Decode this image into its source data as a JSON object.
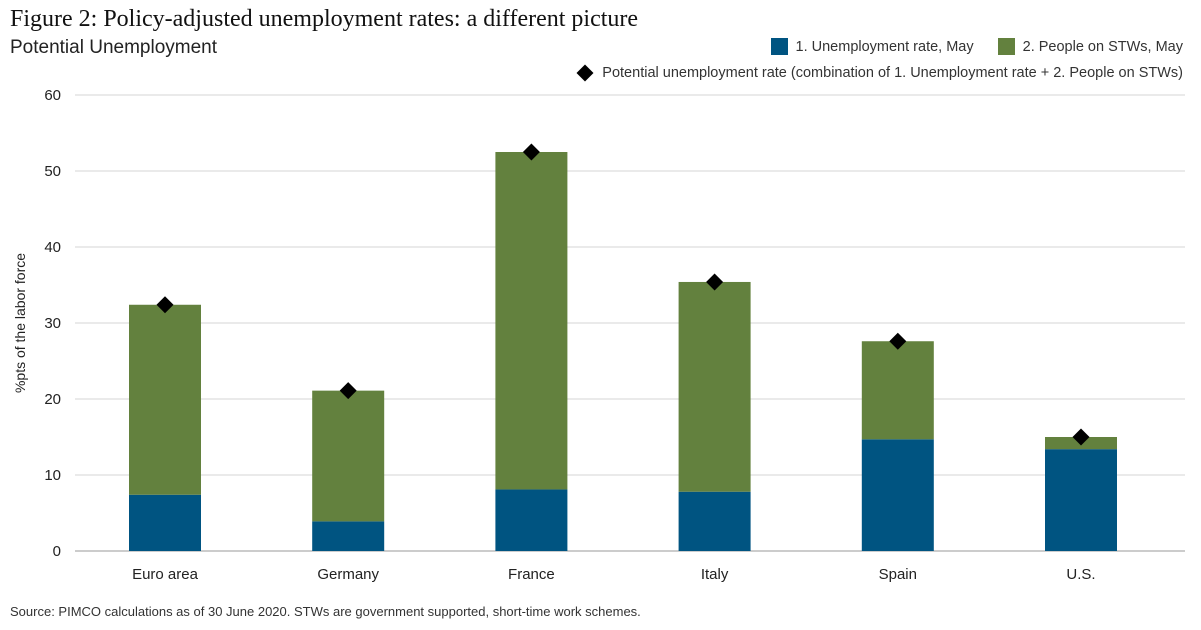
{
  "title": "Figure 2: Policy-adjusted unemployment rates: a different picture",
  "subtitle": "Potential Unemployment",
  "source": "Source: PIMCO calculations as of 30 June 2020. STWs are government supported, short-time work schemes.",
  "legend": {
    "series1": "1. Unemployment rate, May",
    "series2": "2. People on STWs, May",
    "marker": "Potential unemployment rate (combination of 1. Unemployment rate + 2. People on STWs)"
  },
  "colors": {
    "unemployment": "#005481",
    "stw": "#63813E",
    "marker": "#000000",
    "grid": "#d4d4d4"
  },
  "chart_data": {
    "type": "bar",
    "stacked": true,
    "title": "Figure 2: Policy-adjusted unemployment rates: a different picture",
    "subtitle": "Potential Unemployment",
    "xlabel": "",
    "ylabel": "%pts of the labor force",
    "ylim": [
      0,
      60
    ],
    "yticks": [
      0,
      10,
      20,
      30,
      40,
      50,
      60
    ],
    "grid": true,
    "legend_position": "top-right",
    "categories": [
      "Euro area",
      "Germany",
      "France",
      "Italy",
      "Spain",
      "U.S."
    ],
    "series": [
      {
        "name": "1. Unemployment rate, May",
        "values": [
          7.4,
          3.9,
          8.1,
          7.8,
          14.7,
          13.4
        ]
      },
      {
        "name": "2. People on STWs, May",
        "values": [
          25.0,
          17.2,
          44.4,
          27.6,
          12.9,
          1.6
        ]
      }
    ],
    "markers": {
      "name": "Potential unemployment rate (combination of 1. Unemployment rate + 2. People on STWs)",
      "values": [
        32.4,
        21.1,
        52.5,
        35.4,
        27.6,
        15.0
      ]
    }
  }
}
